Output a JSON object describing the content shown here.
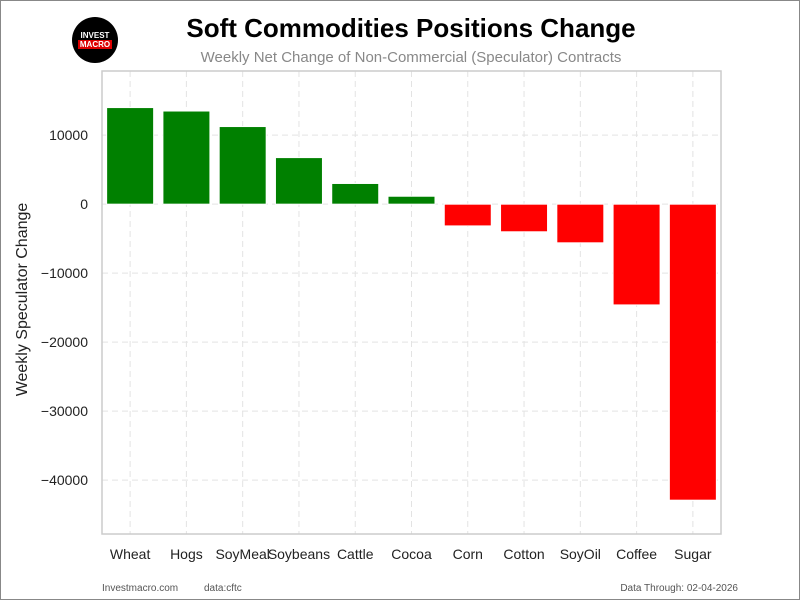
{
  "logo_text": "INVEST MACRO",
  "chart_data": {
    "type": "bar",
    "title": "Soft Commodities Positions Change",
    "subtitle": "Weekly Net Change of Non-Commercial (Speculator) Contracts",
    "xlabel": "",
    "ylabel": "Weekly Speculator Change",
    "categories": [
      "Wheat",
      "Hogs",
      "SoyMeal",
      "Soybeans",
      "Cattle",
      "Cocoa",
      "Corn",
      "Cotton",
      "SoyOil",
      "Coffee",
      "Sugar"
    ],
    "values": [
      14000,
      13500,
      11250,
      6750,
      3000,
      1150,
      -3150,
      -4000,
      -5600,
      -14600,
      -42900
    ],
    "ylim": [
      -47800,
      19300
    ],
    "yticks": [
      10000,
      0,
      -10000,
      -20000,
      -30000,
      -40000
    ],
    "ytick_labels": [
      "10000",
      "0",
      "−10000",
      "−20000",
      "−30000",
      "−40000"
    ],
    "positive_color": "#008000",
    "negative_color": "#ff0000",
    "grid": true
  },
  "footer": {
    "site": "Investmacro.com",
    "source": "data:cftc",
    "date": "Data Through: 02-04-2026"
  }
}
